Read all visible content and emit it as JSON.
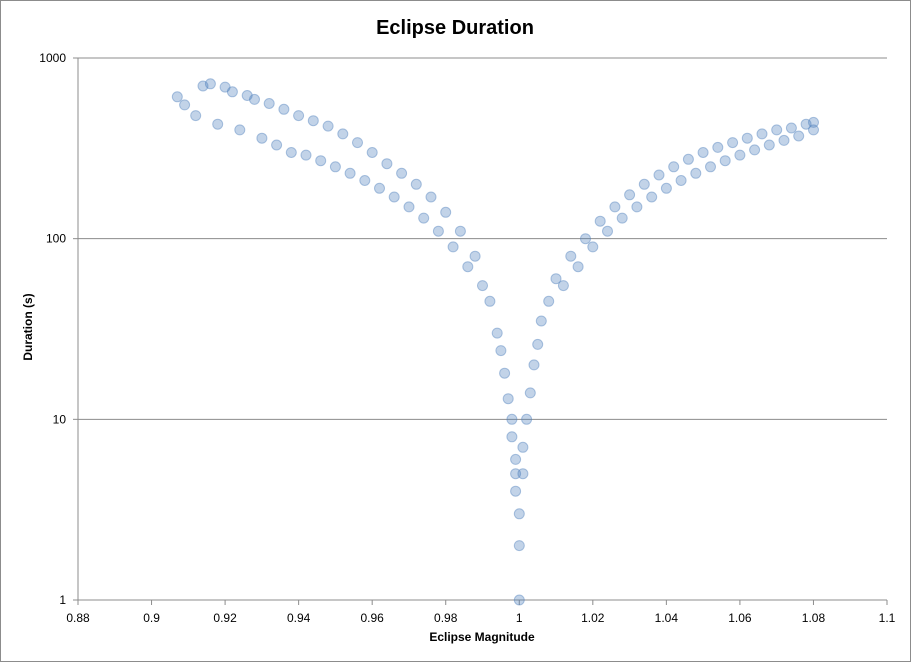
{
  "chart_data": {
    "type": "scatter",
    "title": "Eclipse Duration",
    "xlabel": "Eclipse Magnitude",
    "ylabel": "Duration (s)",
    "xlim": [
      0.88,
      1.1
    ],
    "ylim": [
      1,
      1000
    ],
    "yscale": "log",
    "x_ticks": [
      "0.88",
      "0.9",
      "0.92",
      "0.94",
      "0.96",
      "0.98",
      "1",
      "1.02",
      "1.04",
      "1.06",
      "1.08",
      "1.1"
    ],
    "x_tick_values": [
      0.88,
      0.9,
      0.92,
      0.94,
      0.96,
      0.98,
      1.0,
      1.02,
      1.04,
      1.06,
      1.08,
      1.1
    ],
    "y_ticks": [
      "1",
      "10",
      "100",
      "1000"
    ],
    "y_tick_values": [
      1,
      10,
      100,
      1000
    ],
    "grid": "horizontal major gridlines",
    "legend": "none",
    "marker_color": "#4f81bd",
    "series": [
      {
        "points": [
          [
            0.907,
            610
          ],
          [
            0.909,
            550
          ],
          [
            0.912,
            480
          ],
          [
            0.914,
            700
          ],
          [
            0.916,
            720
          ],
          [
            0.918,
            430
          ],
          [
            0.92,
            690
          ],
          [
            0.922,
            650
          ],
          [
            0.924,
            400
          ],
          [
            0.926,
            620
          ],
          [
            0.928,
            590
          ],
          [
            0.93,
            360
          ],
          [
            0.932,
            560
          ],
          [
            0.934,
            330
          ],
          [
            0.936,
            520
          ],
          [
            0.938,
            300
          ],
          [
            0.94,
            480
          ],
          [
            0.942,
            290
          ],
          [
            0.944,
            450
          ],
          [
            0.946,
            270
          ],
          [
            0.948,
            420
          ],
          [
            0.95,
            250
          ],
          [
            0.952,
            380
          ],
          [
            0.954,
            230
          ],
          [
            0.956,
            340
          ],
          [
            0.958,
            210
          ],
          [
            0.96,
            300
          ],
          [
            0.962,
            190
          ],
          [
            0.964,
            260
          ],
          [
            0.966,
            170
          ],
          [
            0.968,
            230
          ],
          [
            0.97,
            150
          ],
          [
            0.972,
            200
          ],
          [
            0.974,
            130
          ],
          [
            0.976,
            170
          ],
          [
            0.978,
            110
          ],
          [
            0.98,
            140
          ],
          [
            0.982,
            90
          ],
          [
            0.984,
            110
          ],
          [
            0.986,
            70
          ],
          [
            0.988,
            80
          ],
          [
            0.99,
            55
          ],
          [
            0.992,
            45
          ],
          [
            0.994,
            30
          ],
          [
            0.995,
            24
          ],
          [
            0.996,
            18
          ],
          [
            0.997,
            13
          ],
          [
            0.998,
            10
          ],
          [
            0.998,
            8
          ],
          [
            0.999,
            6
          ],
          [
            0.999,
            5
          ],
          [
            0.999,
            4
          ],
          [
            1.0,
            3
          ],
          [
            1.0,
            2
          ],
          [
            1.0,
            1
          ],
          [
            1.001,
            5
          ],
          [
            1.001,
            7
          ],
          [
            1.002,
            10
          ],
          [
            1.003,
            14
          ],
          [
            1.004,
            20
          ],
          [
            1.005,
            26
          ],
          [
            1.006,
            35
          ],
          [
            1.008,
            45
          ],
          [
            1.01,
            60
          ],
          [
            1.012,
            55
          ],
          [
            1.014,
            80
          ],
          [
            1.016,
            70
          ],
          [
            1.018,
            100
          ],
          [
            1.02,
            90
          ],
          [
            1.022,
            125
          ],
          [
            1.024,
            110
          ],
          [
            1.026,
            150
          ],
          [
            1.028,
            130
          ],
          [
            1.03,
            175
          ],
          [
            1.032,
            150
          ],
          [
            1.034,
            200
          ],
          [
            1.036,
            170
          ],
          [
            1.038,
            225
          ],
          [
            1.04,
            190
          ],
          [
            1.042,
            250
          ],
          [
            1.044,
            210
          ],
          [
            1.046,
            275
          ],
          [
            1.048,
            230
          ],
          [
            1.05,
            300
          ],
          [
            1.052,
            250
          ],
          [
            1.054,
            320
          ],
          [
            1.056,
            270
          ],
          [
            1.058,
            340
          ],
          [
            1.06,
            290
          ],
          [
            1.062,
            360
          ],
          [
            1.064,
            310
          ],
          [
            1.066,
            380
          ],
          [
            1.068,
            330
          ],
          [
            1.07,
            400
          ],
          [
            1.072,
            350
          ],
          [
            1.074,
            410
          ],
          [
            1.076,
            370
          ],
          [
            1.078,
            430
          ],
          [
            1.08,
            440
          ],
          [
            1.08,
            400
          ]
        ]
      }
    ]
  }
}
